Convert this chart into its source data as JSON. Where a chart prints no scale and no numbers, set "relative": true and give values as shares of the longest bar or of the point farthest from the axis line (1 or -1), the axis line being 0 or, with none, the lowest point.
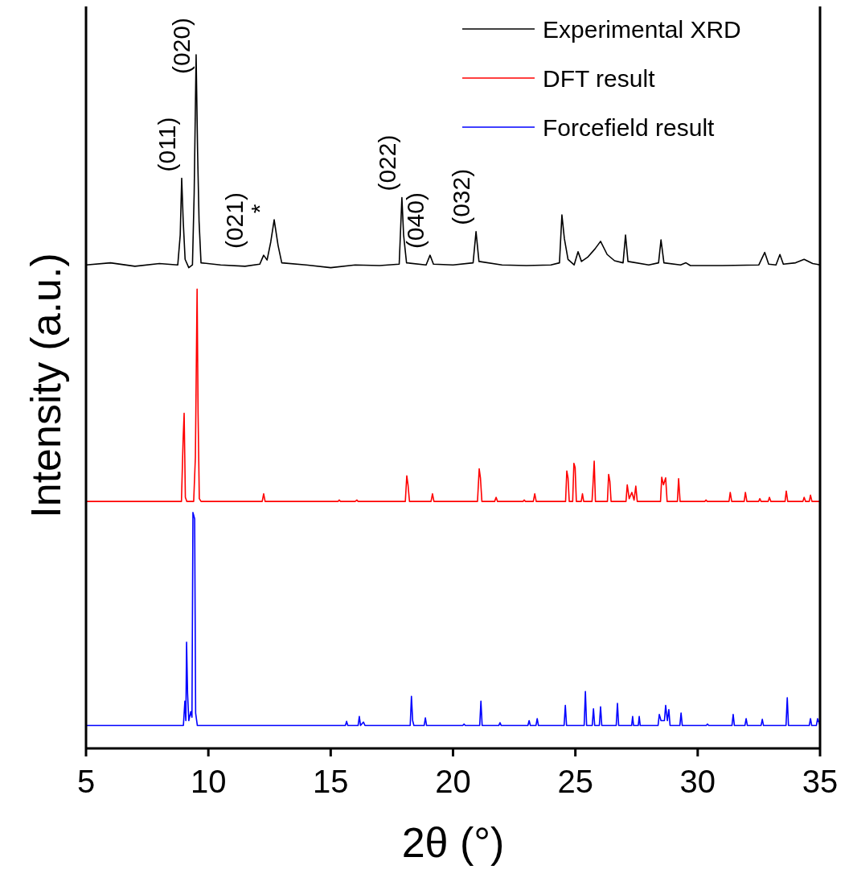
{
  "chart_data": {
    "type": "line",
    "relative": true,
    "xlabel": "2θ (°)",
    "ylabel": "Intensity (a.u.)",
    "xlim": [
      5,
      35
    ],
    "xticks": [
      5,
      10,
      15,
      20,
      25,
      30,
      35
    ],
    "legend": "top right",
    "grid": false,
    "annotations": [
      {
        "text": "(011)",
        "x": 8.91,
        "y": 0.822
      },
      {
        "text": "(020)",
        "x": 9.5,
        "y": 1.0
      },
      {
        "text": "(021)",
        "x": 12.26,
        "y": 0.711
      },
      {
        "text": "*",
        "x": 12.69,
        "y": 0.762
      },
      {
        "text": "(022)",
        "x": 17.91,
        "y": 0.794
      },
      {
        "text": "(040)",
        "x": 19.06,
        "y": 0.711
      },
      {
        "text": "(032)",
        "x": 20.94,
        "y": 0.745
      }
    ],
    "series": [
      {
        "name": "Experimental XRD",
        "color": "#000000",
        "x": [
          5.0,
          6.0,
          7.0,
          8.0,
          8.75,
          8.85,
          8.91,
          8.97,
          9.05,
          9.2,
          9.35,
          9.42,
          9.5,
          9.56,
          9.62,
          9.7,
          10.5,
          11.5,
          12.1,
          12.26,
          12.4,
          12.55,
          12.69,
          12.85,
          13.0,
          14.0,
          15.0,
          16.0,
          17.0,
          17.8,
          17.91,
          17.98,
          18.1,
          18.9,
          19.06,
          19.2,
          20.0,
          20.82,
          20.94,
          21.06,
          22.0,
          23.0,
          24.0,
          24.35,
          24.45,
          24.55,
          24.7,
          24.95,
          25.11,
          25.25,
          25.5,
          25.8,
          26.03,
          26.3,
          26.6,
          26.95,
          27.05,
          27.15,
          28.0,
          28.4,
          28.5,
          28.62,
          29.3,
          29.52,
          29.7,
          31.0,
          32.5,
          32.74,
          32.9,
          33.2,
          33.36,
          33.5,
          34.0,
          34.35,
          34.7,
          35.0
        ],
        "values": [
          0.697,
          0.7,
          0.695,
          0.699,
          0.697,
          0.74,
          0.822,
          0.762,
          0.705,
          0.693,
          0.697,
          0.8,
          1.0,
          0.86,
          0.76,
          0.7,
          0.697,
          0.695,
          0.698,
          0.711,
          0.704,
          0.73,
          0.762,
          0.725,
          0.7,
          0.697,
          0.693,
          0.697,
          0.696,
          0.698,
          0.794,
          0.74,
          0.7,
          0.697,
          0.711,
          0.698,
          0.697,
          0.7,
          0.745,
          0.702,
          0.697,
          0.696,
          0.697,
          0.7,
          0.769,
          0.735,
          0.705,
          0.697,
          0.716,
          0.702,
          0.708,
          0.72,
          0.731,
          0.712,
          0.703,
          0.7,
          0.74,
          0.702,
          0.697,
          0.7,
          0.733,
          0.7,
          0.697,
          0.7,
          0.696,
          0.696,
          0.697,
          0.715,
          0.698,
          0.697,
          0.712,
          0.698,
          0.7,
          0.705,
          0.699,
          0.697
        ]
      },
      {
        "name": "DFT result",
        "color": "#ff0000",
        "x": [
          5.0,
          8.9,
          8.97,
          9.01,
          9.06,
          9.12,
          9.4,
          9.47,
          9.54,
          9.58,
          9.63,
          9.7,
          12.2,
          12.26,
          12.32,
          15.3,
          15.35,
          15.4,
          16.0,
          16.07,
          16.12,
          18.05,
          18.11,
          18.16,
          18.22,
          19.1,
          19.16,
          19.22,
          21.0,
          21.07,
          21.12,
          21.18,
          21.7,
          21.76,
          21.82,
          22.86,
          22.91,
          22.96,
          23.28,
          23.34,
          23.4,
          24.6,
          24.65,
          24.7,
          24.75,
          24.89,
          24.94,
          24.99,
          25.04,
          25.24,
          25.29,
          25.34,
          25.68,
          25.72,
          25.77,
          25.82,
          26.31,
          26.36,
          26.41,
          26.46,
          27.07,
          27.12,
          27.2,
          27.31,
          27.4,
          27.47,
          27.53,
          28.48,
          28.53,
          28.6,
          28.69,
          28.75,
          29.17,
          29.22,
          29.28,
          30.29,
          30.34,
          30.39,
          31.28,
          31.33,
          31.39,
          31.9,
          31.95,
          32.01,
          32.49,
          32.54,
          32.59,
          32.88,
          32.93,
          32.99,
          33.57,
          33.62,
          33.68,
          34.3,
          34.35,
          34.41,
          34.56,
          34.61,
          34.67,
          35.0
        ],
        "values": [
          0.356,
          0.356,
          0.447,
          0.483,
          0.362,
          0.356,
          0.356,
          0.42,
          0.662,
          0.483,
          0.36,
          0.356,
          0.356,
          0.367,
          0.356,
          0.356,
          0.358,
          0.356,
          0.356,
          0.358,
          0.356,
          0.356,
          0.393,
          0.38,
          0.356,
          0.356,
          0.367,
          0.356,
          0.356,
          0.403,
          0.39,
          0.356,
          0.356,
          0.362,
          0.356,
          0.356,
          0.358,
          0.356,
          0.356,
          0.367,
          0.356,
          0.356,
          0.4,
          0.39,
          0.356,
          0.356,
          0.411,
          0.405,
          0.356,
          0.356,
          0.367,
          0.356,
          0.356,
          0.38,
          0.414,
          0.356,
          0.356,
          0.395,
          0.385,
          0.356,
          0.356,
          0.38,
          0.36,
          0.369,
          0.358,
          0.378,
          0.356,
          0.356,
          0.391,
          0.38,
          0.39,
          0.356,
          0.356,
          0.389,
          0.356,
          0.356,
          0.358,
          0.356,
          0.356,
          0.369,
          0.356,
          0.356,
          0.369,
          0.356,
          0.356,
          0.36,
          0.356,
          0.356,
          0.362,
          0.356,
          0.356,
          0.371,
          0.356,
          0.356,
          0.362,
          0.356,
          0.356,
          0.365,
          0.356,
          0.356
        ]
      },
      {
        "name": "Forcefield result",
        "color": "#0000ff",
        "x": [
          5.0,
          8.98,
          9.04,
          9.08,
          9.11,
          9.15,
          9.2,
          9.28,
          9.33,
          9.37,
          9.44,
          9.48,
          9.55,
          15.6,
          15.65,
          15.7,
          16.12,
          16.17,
          16.22,
          16.34,
          16.4,
          18.25,
          18.3,
          18.35,
          18.4,
          18.82,
          18.87,
          18.92,
          20.4,
          20.45,
          20.5,
          21.09,
          21.14,
          21.19,
          21.87,
          21.92,
          21.97,
          23.06,
          23.11,
          23.16,
          23.39,
          23.44,
          23.49,
          24.54,
          24.59,
          24.64,
          25.36,
          25.41,
          25.46,
          25.69,
          25.74,
          25.79,
          25.98,
          26.03,
          26.08,
          26.67,
          26.72,
          26.77,
          27.3,
          27.34,
          27.38,
          27.57,
          27.61,
          27.65,
          28.38,
          28.43,
          28.5,
          28.64,
          28.69,
          28.76,
          28.82,
          28.87,
          29.27,
          29.32,
          29.37,
          30.35,
          30.4,
          30.45,
          31.4,
          31.45,
          31.5,
          31.93,
          31.98,
          32.03,
          32.59,
          32.64,
          32.69,
          33.61,
          33.66,
          33.71,
          34.56,
          34.61,
          34.66,
          34.85,
          34.9,
          35.0
        ],
        "values": [
          0.033,
          0.033,
          0.068,
          0.04,
          0.153,
          0.08,
          0.04,
          0.053,
          0.045,
          0.34,
          0.331,
          0.051,
          0.033,
          0.033,
          0.039,
          0.033,
          0.033,
          0.046,
          0.033,
          0.038,
          0.033,
          0.033,
          0.075,
          0.04,
          0.033,
          0.033,
          0.044,
          0.033,
          0.033,
          0.035,
          0.033,
          0.033,
          0.068,
          0.033,
          0.033,
          0.037,
          0.033,
          0.033,
          0.04,
          0.033,
          0.033,
          0.043,
          0.033,
          0.033,
          0.062,
          0.033,
          0.033,
          0.082,
          0.033,
          0.033,
          0.057,
          0.033,
          0.033,
          0.06,
          0.033,
          0.033,
          0.065,
          0.033,
          0.033,
          0.046,
          0.033,
          0.033,
          0.046,
          0.033,
          0.033,
          0.049,
          0.04,
          0.04,
          0.062,
          0.04,
          0.056,
          0.033,
          0.033,
          0.051,
          0.033,
          0.033,
          0.035,
          0.033,
          0.033,
          0.049,
          0.033,
          0.033,
          0.043,
          0.033,
          0.033,
          0.042,
          0.033,
          0.033,
          0.073,
          0.033,
          0.033,
          0.043,
          0.033,
          0.033,
          0.043,
          0.033
        ]
      }
    ]
  }
}
